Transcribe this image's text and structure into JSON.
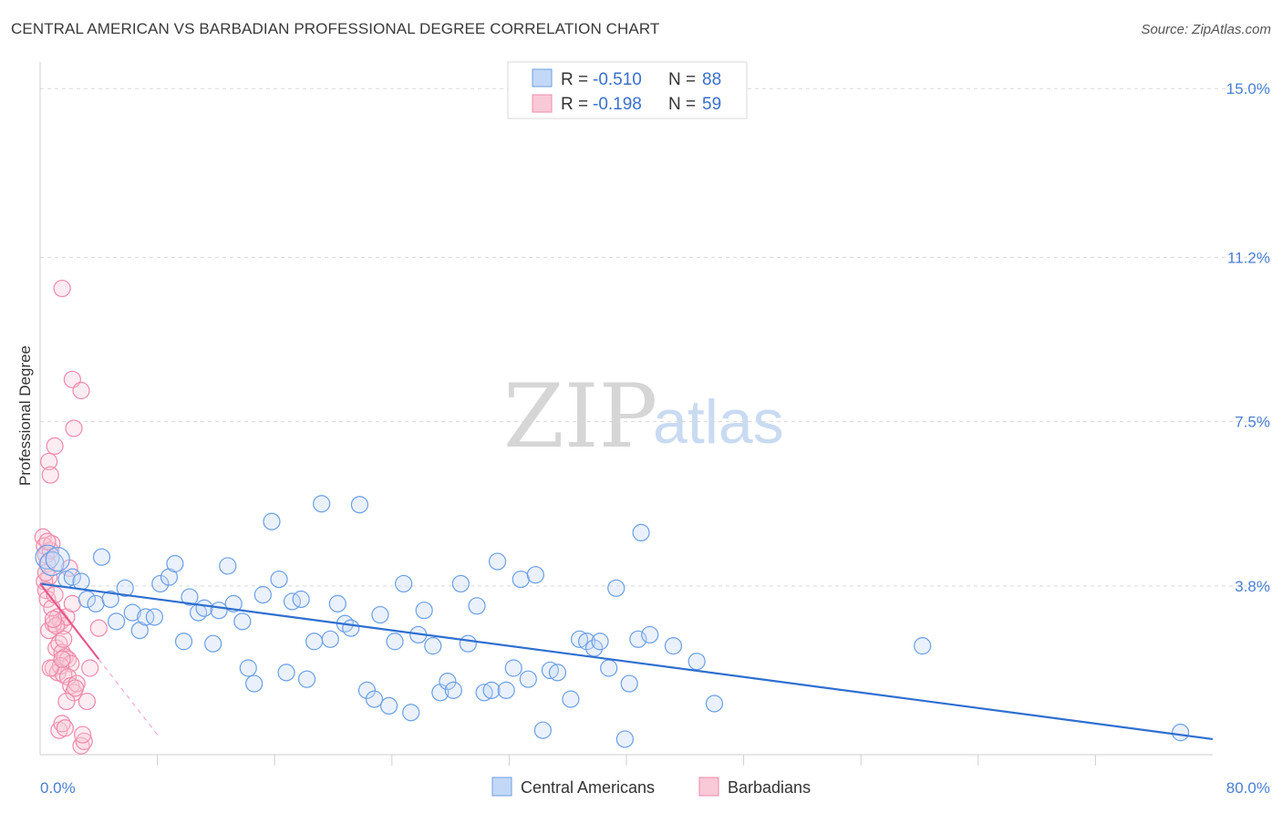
{
  "title": "CENTRAL AMERICAN VS BARBADIAN PROFESSIONAL DEGREE CORRELATION CHART",
  "source": "Source: ZipAtlas.com",
  "watermark": {
    "zip": "ZIP",
    "atlas": "atlas"
  },
  "colors": {
    "blue": "#6a9fe6",
    "blue_line": "#2e6fd0",
    "pink": "#f08aaa",
    "pink_line": "#e8588a",
    "grid": "#d9d9d9",
    "axis_label": "#4a7fd4"
  },
  "chart_data": {
    "type": "scatter",
    "title": "CENTRAL AMERICAN VS BARBADIAN PROFESSIONAL DEGREE CORRELATION CHART",
    "xlabel": "",
    "ylabel": "Professional Degree",
    "xlim": [
      0,
      80
    ],
    "ylim": [
      0,
      15.6
    ],
    "x_tick_labels": [
      "0.0%",
      "80.0%"
    ],
    "y_ticks": [
      3.8,
      7.5,
      11.2,
      15.0
    ],
    "y_tick_labels": [
      "3.8%",
      "7.5%",
      "11.2%",
      "15.0%"
    ],
    "legend": [
      {
        "name": "Central Americans",
        "r_label": "R =",
        "r": "-0.510",
        "n_label": "N =",
        "n": "88"
      },
      {
        "name": "Barbadians",
        "r_label": "R =",
        "r": "-0.198",
        "n_label": "N =",
        "n": "59"
      }
    ],
    "series": [
      {
        "name": "Central Americans",
        "color": "#6a9fe6",
        "trend": {
          "x": [
            0,
            80
          ],
          "y": [
            3.85,
            0.35
          ],
          "dashed_to": null
        },
        "points": [
          [
            0.5,
            4.45
          ],
          [
            0.8,
            4.3
          ],
          [
            1.2,
            4.4
          ],
          [
            1.8,
            3.95
          ],
          [
            2.2,
            4.0
          ],
          [
            2.8,
            3.9
          ],
          [
            3.2,
            3.5
          ],
          [
            3.8,
            3.4
          ],
          [
            4.2,
            4.45
          ],
          [
            4.8,
            3.5
          ],
          [
            5.2,
            3.0
          ],
          [
            5.8,
            3.75
          ],
          [
            6.3,
            3.2
          ],
          [
            6.8,
            2.8
          ],
          [
            7.2,
            3.1
          ],
          [
            7.8,
            3.1
          ],
          [
            8.2,
            3.85
          ],
          [
            8.8,
            4.0
          ],
          [
            9.2,
            4.3
          ],
          [
            9.8,
            2.55
          ],
          [
            10.2,
            3.55
          ],
          [
            10.8,
            3.2
          ],
          [
            11.2,
            3.3
          ],
          [
            11.8,
            2.5
          ],
          [
            12.2,
            3.25
          ],
          [
            12.8,
            4.25
          ],
          [
            13.2,
            3.4
          ],
          [
            13.8,
            3.0
          ],
          [
            14.2,
            1.95
          ],
          [
            14.6,
            1.6
          ],
          [
            15.2,
            3.6
          ],
          [
            15.8,
            5.25
          ],
          [
            16.3,
            3.95
          ],
          [
            16.8,
            1.85
          ],
          [
            17.2,
            3.45
          ],
          [
            17.8,
            3.5
          ],
          [
            18.2,
            1.7
          ],
          [
            18.7,
            2.55
          ],
          [
            19.2,
            5.65
          ],
          [
            19.8,
            2.6
          ],
          [
            20.3,
            3.4
          ],
          [
            20.8,
            2.95
          ],
          [
            21.2,
            2.85
          ],
          [
            21.8,
            5.63
          ],
          [
            22.3,
            1.45
          ],
          [
            22.8,
            1.25
          ],
          [
            23.2,
            3.15
          ],
          [
            23.8,
            1.1
          ],
          [
            24.2,
            2.55
          ],
          [
            24.8,
            3.85
          ],
          [
            25.3,
            0.95
          ],
          [
            25.8,
            2.7
          ],
          [
            26.2,
            3.25
          ],
          [
            26.8,
            2.45
          ],
          [
            27.3,
            1.4
          ],
          [
            27.8,
            1.65
          ],
          [
            28.2,
            1.45
          ],
          [
            28.7,
            3.85
          ],
          [
            29.2,
            2.5
          ],
          [
            29.8,
            3.35
          ],
          [
            30.3,
            1.4
          ],
          [
            30.8,
            1.45
          ],
          [
            31.2,
            4.35
          ],
          [
            31.8,
            1.45
          ],
          [
            32.3,
            1.95
          ],
          [
            32.8,
            3.95
          ],
          [
            33.3,
            1.7
          ],
          [
            33.8,
            4.05
          ],
          [
            34.3,
            0.55
          ],
          [
            34.8,
            1.9
          ],
          [
            35.3,
            1.85
          ],
          [
            36.2,
            1.25
          ],
          [
            36.8,
            2.6
          ],
          [
            37.3,
            2.55
          ],
          [
            37.8,
            2.4
          ],
          [
            38.2,
            2.55
          ],
          [
            38.8,
            1.95
          ],
          [
            39.3,
            3.75
          ],
          [
            39.9,
            0.35
          ],
          [
            40.2,
            1.6
          ],
          [
            40.8,
            2.6
          ],
          [
            41.6,
            2.7
          ],
          [
            43.2,
            2.45
          ],
          [
            44.8,
            2.1
          ],
          [
            46.0,
            1.15
          ],
          [
            60.2,
            2.45
          ],
          [
            77.8,
            0.5
          ],
          [
            41.0,
            5.0
          ]
        ]
      },
      {
        "name": "Barbadians",
        "color": "#f08aaa",
        "trend": {
          "x": [
            0,
            4
          ],
          "y": [
            3.85,
            2.15
          ],
          "dashed_to": [
            8,
            0.45
          ]
        },
        "points": [
          [
            0.2,
            4.9
          ],
          [
            0.3,
            4.7
          ],
          [
            0.4,
            4.5
          ],
          [
            0.5,
            4.3
          ],
          [
            0.6,
            4.0
          ],
          [
            0.7,
            4.6
          ],
          [
            0.8,
            4.75
          ],
          [
            0.3,
            3.9
          ],
          [
            0.4,
            3.7
          ],
          [
            0.6,
            6.6
          ],
          [
            0.7,
            6.3
          ],
          [
            1.0,
            6.95
          ],
          [
            1.5,
            10.5
          ],
          [
            2.2,
            8.45
          ],
          [
            2.8,
            8.2
          ],
          [
            2.3,
            7.35
          ],
          [
            0.5,
            3.5
          ],
          [
            0.8,
            3.3
          ],
          [
            1.0,
            3.6
          ],
          [
            1.2,
            3.1
          ],
          [
            1.4,
            3.0
          ],
          [
            1.6,
            2.9
          ],
          [
            1.8,
            3.1
          ],
          [
            2.0,
            4.2
          ],
          [
            2.2,
            3.4
          ],
          [
            0.6,
            2.8
          ],
          [
            0.9,
            2.95
          ],
          [
            1.1,
            2.4
          ],
          [
            1.3,
            2.5
          ],
          [
            1.5,
            2.3
          ],
          [
            1.7,
            2.2
          ],
          [
            1.9,
            2.15
          ],
          [
            2.1,
            2.05
          ],
          [
            0.9,
            1.95
          ],
          [
            1.2,
            1.85
          ],
          [
            1.4,
            2.0
          ],
          [
            1.6,
            1.8
          ],
          [
            1.9,
            1.75
          ],
          [
            2.1,
            1.55
          ],
          [
            2.3,
            1.4
          ],
          [
            2.5,
            1.6
          ],
          [
            1.8,
            1.2
          ],
          [
            3.2,
            1.2
          ],
          [
            4.0,
            2.85
          ],
          [
            1.3,
            0.55
          ],
          [
            1.5,
            0.7
          ],
          [
            1.7,
            0.6
          ],
          [
            2.8,
            0.2
          ],
          [
            3.0,
            0.3
          ],
          [
            2.9,
            0.45
          ],
          [
            0.4,
            4.1
          ],
          [
            0.5,
            4.8
          ],
          [
            1.1,
            2.9
          ],
          [
            0.9,
            3.05
          ],
          [
            2.4,
            1.5
          ],
          [
            0.7,
            1.95
          ],
          [
            1.6,
            2.6
          ],
          [
            3.4,
            1.95
          ],
          [
            1.5,
            2.15
          ]
        ]
      }
    ]
  }
}
